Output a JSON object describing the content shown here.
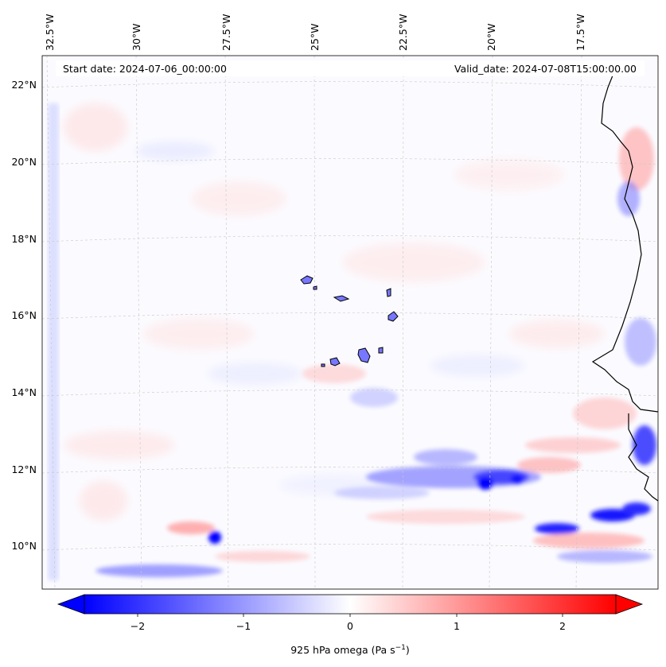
{
  "map": {
    "start_date_text": "Start date: 2024-07-06_00:00:00",
    "valid_date_text": "Valid_date: 2024-07-08T15:00:00.00",
    "lon_labels": [
      {
        "text": "32.5°W",
        "lon": -32.5
      },
      {
        "text": "30°W",
        "lon": -30
      },
      {
        "text": "27.5°W",
        "lon": -27.5
      },
      {
        "text": "25°W",
        "lon": -25
      },
      {
        "text": "22.5°W",
        "lon": -22.5
      },
      {
        "text": "20°W",
        "lon": -20
      },
      {
        "text": "17.5°W",
        "lon": -17.5
      }
    ],
    "lat_labels": [
      {
        "text": "22°N",
        "lat": 22
      },
      {
        "text": "20°N",
        "lat": 20
      },
      {
        "text": "18°N",
        "lat": 18
      },
      {
        "text": "16°N",
        "lat": 16
      },
      {
        "text": "14°N",
        "lat": 14
      },
      {
        "text": "12°N",
        "lat": 12
      },
      {
        "text": "10°N",
        "lat": 10
      }
    ],
    "field": "925 hPa omega",
    "colormap": "bwr",
    "gridlines": true
  },
  "colorbar": {
    "ticks": [
      {
        "value": -2,
        "label": "−2"
      },
      {
        "value": -1,
        "label": "−1"
      },
      {
        "value": 0,
        "label": "0"
      },
      {
        "value": 1,
        "label": "1"
      },
      {
        "value": 2,
        "label": "2"
      }
    ],
    "range": [
      -2.5,
      2.5
    ],
    "extend": "both",
    "label_main": "925 hPa omega (Pa s",
    "label_exp": "−1",
    "label_close": ")",
    "colors": {
      "min": "#0000ff",
      "mid": "#ffffff",
      "max": "#ff0000"
    }
  }
}
